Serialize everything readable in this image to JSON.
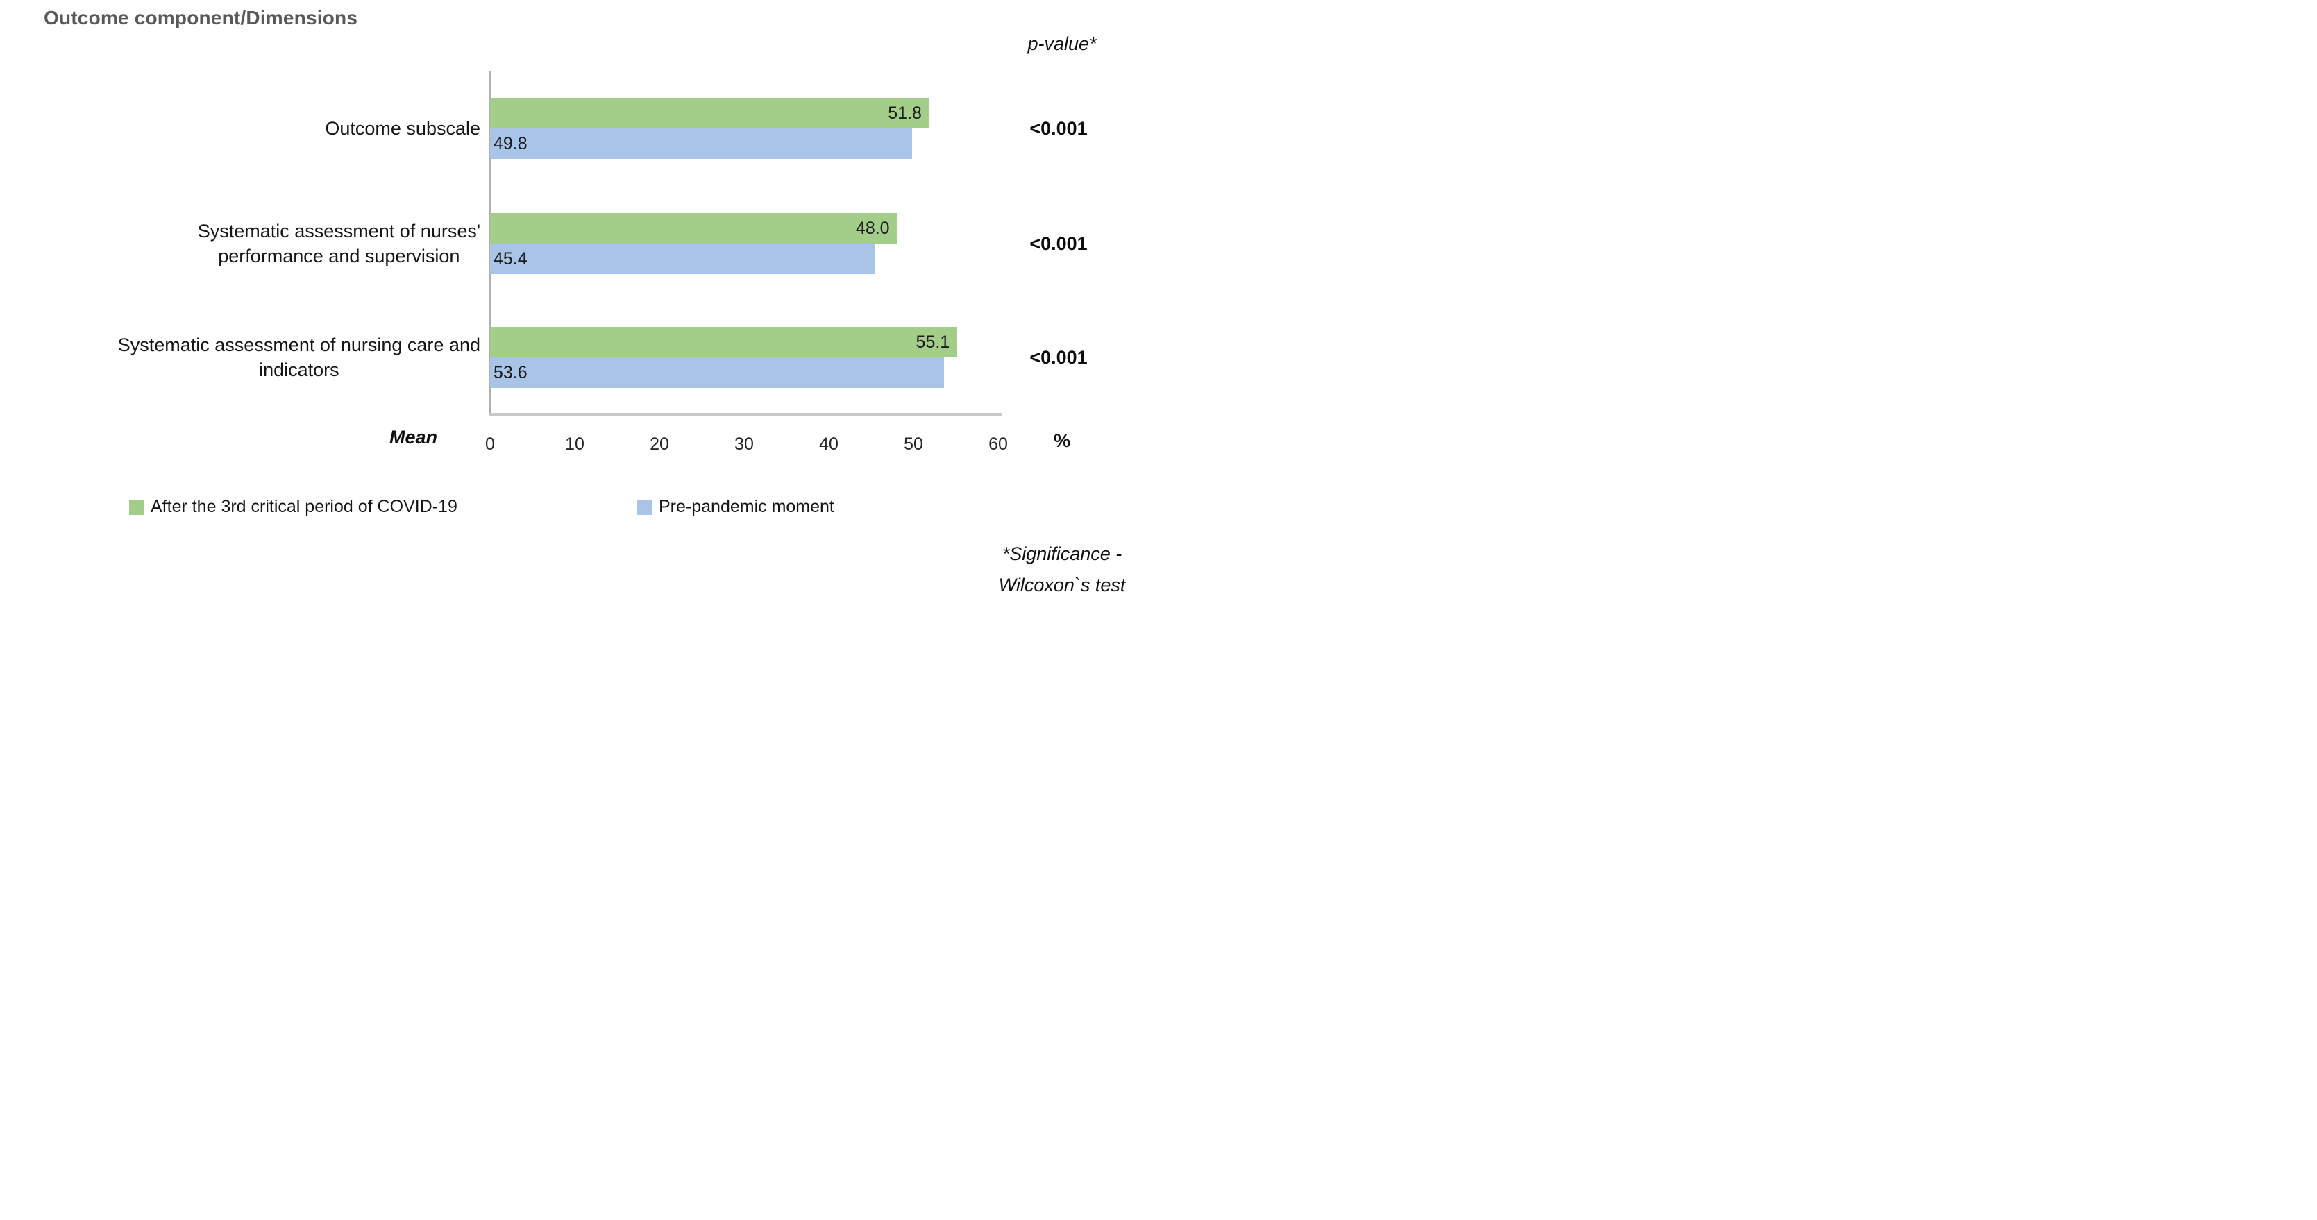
{
  "page": {
    "title": "Outcome component/Dimensions",
    "pvalue_header": "p-value*",
    "mean_label": "Mean",
    "percent_label": "%",
    "footnote_lines": [
      "*Significance -",
      "Wilcoxon`s test"
    ]
  },
  "colors": {
    "series_green": "#A3CE89",
    "series_blue": "#A8C5E8",
    "title_gray": "#595959",
    "axis_vertical": "#AFAFAF",
    "axis_horizontal": "#C9C9C9",
    "text_dark": "#1B1B1B"
  },
  "chart_data": {
    "type": "bar",
    "orientation": "horizontal",
    "title": "Outcome component/Dimensions",
    "categories": [
      "Outcome subscale",
      "Systematic assessment of nurses' performance and supervision",
      "Systematic assessment of nursing care and indicators"
    ],
    "category_label_lines": [
      [
        "Outcome subscale"
      ],
      [
        "Systematic assessment of nurses'",
        "performance and supervision"
      ],
      [
        "Systematic assessment of nursing care and",
        "indicators"
      ]
    ],
    "series": [
      {
        "name": "After the 3rd critical period of COVID-19",
        "color": "#A3CE89",
        "values": [
          51.8,
          48.0,
          55.1
        ]
      },
      {
        "name": "Pre-pandemic moment",
        "color": "#A8C5E8",
        "values": [
          49.8,
          45.4,
          53.6
        ]
      }
    ],
    "p_values": [
      "<0.001",
      "<0.001",
      "<0.001"
    ],
    "x_ticks": [
      0,
      10,
      20,
      30,
      40,
      50,
      60
    ],
    "xlim": [
      0,
      60
    ],
    "xlabel": "%",
    "x_axis_title": "Mean",
    "ylabel": "Outcome component/Dimensions",
    "legend_position": "bottom",
    "grid": false,
    "footnote": "*Significance - Wilcoxon`s test"
  }
}
